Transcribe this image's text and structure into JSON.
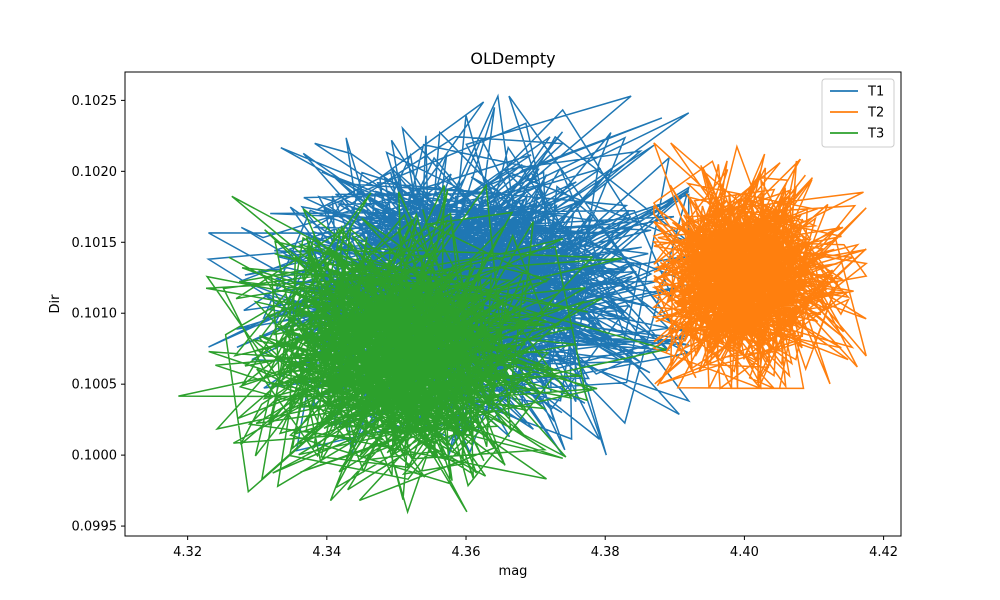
{
  "chart_data": {
    "type": "line",
    "title": "OLDempty",
    "xlabel": "mag",
    "ylabel": "Dir",
    "xlim": [
      4.311,
      4.4225
    ],
    "ylim": [
      0.09943,
      0.1027
    ],
    "xticks": [
      4.32,
      4.34,
      4.36,
      4.38,
      4.4,
      4.42
    ],
    "xtick_labels": [
      "4.32",
      "4.34",
      "4.36",
      "4.38",
      "4.40",
      "4.42"
    ],
    "yticks": [
      0.0995,
      0.1,
      0.1005,
      0.101,
      0.1015,
      0.102,
      0.1025
    ],
    "ytick_labels": [
      "0.0995",
      "0.1000",
      "0.1005",
      "0.1010",
      "0.1015",
      "0.1020",
      "0.1025"
    ],
    "grid": false,
    "legend_position": "top-right",
    "series": [
      {
        "name": "T1",
        "color": "#1f77b4",
        "x_range": [
          4.323,
          4.392
        ],
        "y_range": [
          0.1,
          0.10253
        ],
        "center": [
          4.36,
          0.1012
        ],
        "spread": [
          0.014,
          0.0005
        ],
        "n_points": 900
      },
      {
        "name": "T2",
        "color": "#ff7f0e",
        "x_range": [
          4.387,
          4.4175
        ],
        "y_range": [
          0.10047,
          0.1022
        ],
        "center": [
          4.4,
          0.10125
        ],
        "spread": [
          0.0065,
          0.00035
        ],
        "n_points": 900
      },
      {
        "name": "T3",
        "color": "#2ca02c",
        "x_range": [
          4.316,
          4.39
        ],
        "y_range": [
          0.0996,
          0.1019
        ],
        "center": [
          4.35,
          0.10075
        ],
        "spread": [
          0.011,
          0.00045
        ],
        "n_points": 900
      }
    ]
  }
}
